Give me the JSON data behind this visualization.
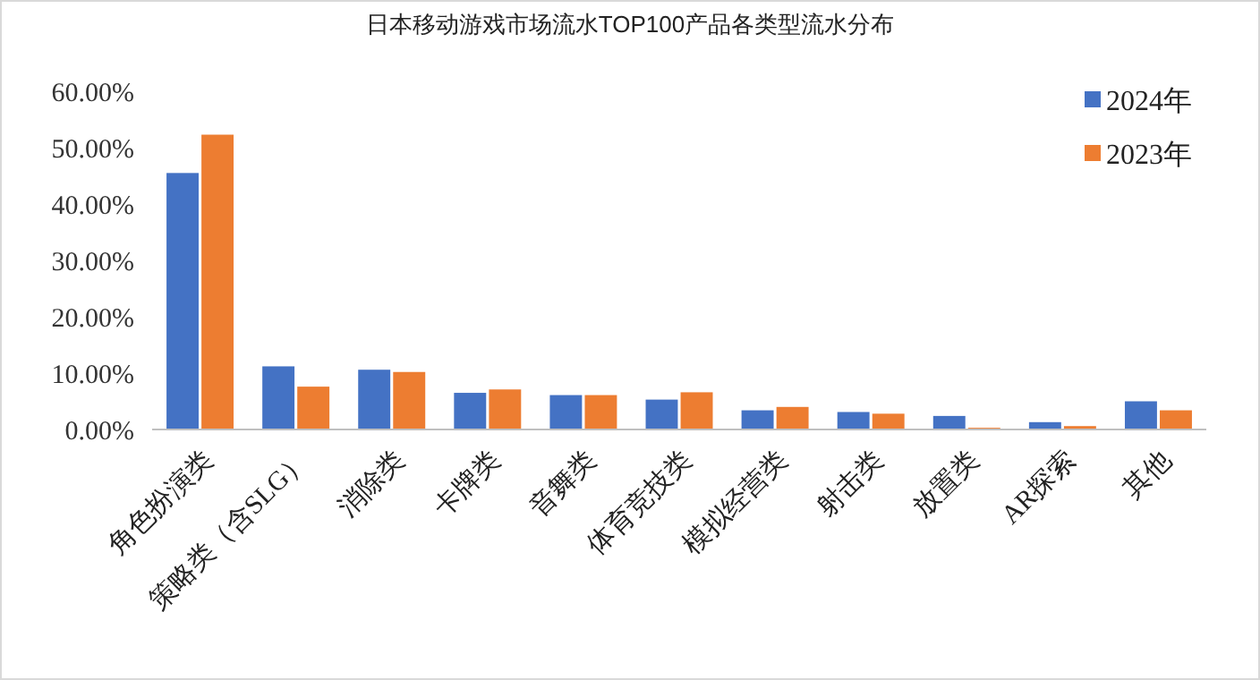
{
  "chart_data": {
    "type": "bar",
    "title": "日本移动游戏市场流水TOP100产品各类型流水分布",
    "categories": [
      "角色扮演类",
      "策略类（含SLG）",
      "消除类",
      "卡牌类",
      "音舞类",
      "体育竞技类",
      "模拟经营类",
      "射击类",
      "放置类",
      "AR探索",
      "其他"
    ],
    "series": [
      {
        "name": "2024年",
        "color": "#4472c4",
        "values": [
          45.5,
          11.2,
          10.6,
          6.5,
          6.1,
          5.3,
          3.4,
          3.1,
          2.4,
          1.3,
          5.0
        ]
      },
      {
        "name": "2023年",
        "color": "#ed7d31",
        "values": [
          52.3,
          7.6,
          10.2,
          7.1,
          6.1,
          6.6,
          4.0,
          2.8,
          0.3,
          0.6,
          3.4
        ]
      }
    ],
    "ylim": [
      0,
      60
    ],
    "yticks": [
      {
        "value": 0,
        "label": "0.00%"
      },
      {
        "value": 10,
        "label": "10.00%"
      },
      {
        "value": 20,
        "label": "20.00%"
      },
      {
        "value": 30,
        "label": "30.00%"
      },
      {
        "value": 40,
        "label": "40.00%"
      },
      {
        "value": 50,
        "label": "50.00%"
      },
      {
        "value": 60,
        "label": "60.00%"
      }
    ],
    "legend": "top right",
    "grid": false
  }
}
